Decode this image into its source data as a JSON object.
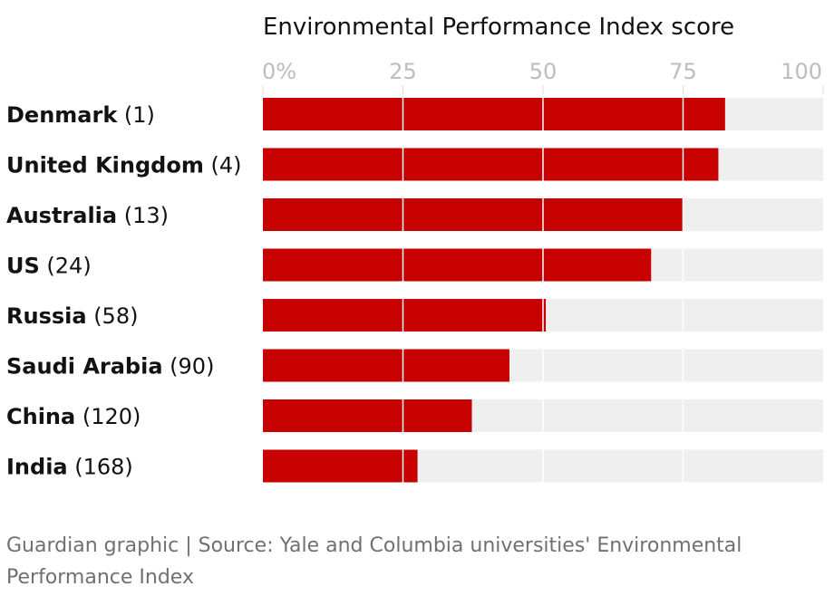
{
  "chart_data": {
    "type": "bar",
    "orientation": "horizontal",
    "title": "Environmental Performance Index score",
    "categories": [
      "Denmark",
      "United Kingdom",
      "Australia",
      "US",
      "Russia",
      "Saudi Arabia",
      "China",
      "India"
    ],
    "ranks": [
      "(1)",
      "(4)",
      "(13)",
      "(24)",
      "(58)",
      "(90)",
      "(120)",
      "(168)"
    ],
    "values": [
      82.5,
      81.3,
      74.9,
      69.3,
      50.5,
      44.0,
      37.3,
      27.6
    ],
    "max_value": 100,
    "xlim": [
      0,
      100
    ],
    "ticks": [
      0,
      25,
      50,
      75,
      100
    ],
    "tick_labels": [
      "0%",
      "25",
      "50",
      "75",
      "100"
    ],
    "grid": true,
    "colors": {
      "bar": "#c70000",
      "track": "#efefef",
      "tick_text": "#bdbdbd",
      "grid": "#ffffff"
    }
  },
  "footer": {
    "source": "Guardian graphic | Source: Yale and Columbia universities' Environmental Performance Index"
  }
}
